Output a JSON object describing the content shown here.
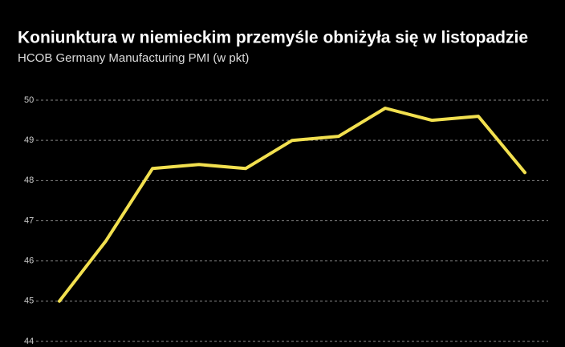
{
  "chart_data": {
    "type": "line",
    "title": "Koniunktura w niemieckim przemyśle obniżyła się w listopadzie",
    "subtitle": "HCOB Germany Manufacturing PMI (w pkt)",
    "categories": [
      null,
      null,
      null,
      null,
      null,
      null,
      null,
      null,
      null,
      null,
      null
    ],
    "values": [
      45.0,
      46.5,
      48.3,
      48.4,
      48.3,
      49.0,
      49.1,
      49.8,
      49.5,
      49.6,
      48.2
    ],
    "color": "#f2e04f",
    "ylim": [
      44,
      50
    ],
    "yticks": [
      44,
      45,
      46,
      47,
      48,
      49,
      50
    ],
    "grid": true
  }
}
